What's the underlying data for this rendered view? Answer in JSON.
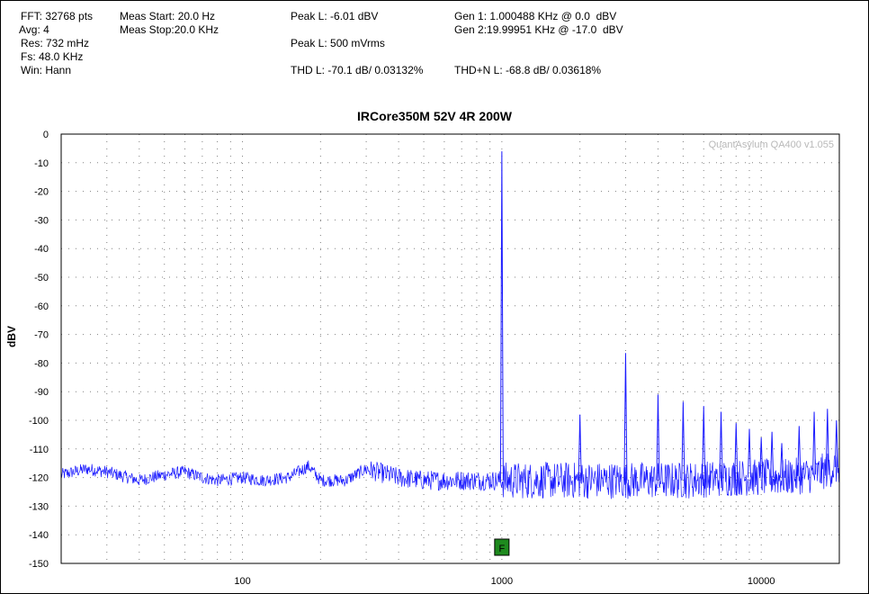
{
  "info": {
    "fft": "FFT: 32768 pts",
    "avg": "Avg: 4",
    "res": "Res: 732 mHz",
    "fs": "Fs: 48.0 KHz",
    "win": "Win: Hann",
    "meas_start": "Meas Start: 20.0 Hz",
    "meas_stop": "Meas Stop:20.0 KHz",
    "peak_l_dbv": "Peak L: -6.01 dBV",
    "peak_l_vrms": "Peak L: 500 mVrms",
    "thd_l": "THD L: -70.1 dB/ 0.03132%",
    "gen1": "Gen 1: 1.000488 KHz @ 0.0  dBV",
    "gen2": "Gen 2:19.99951 KHz @ -17.0  dBV",
    "thdn_l": "THD+N L: -68.8 dB/ 0.03618%"
  },
  "watermark": "QuantAsylum QA400 v1.055",
  "marker_label": "F",
  "colors": {
    "trace": "#1a1aff",
    "grid": "#808080",
    "marker_fill": "#1e8a1e"
  },
  "chart_data": {
    "type": "line",
    "title": "IRCore350M 52V 4R 200W",
    "xlabel": "",
    "ylabel": "dBV",
    "x_scale": "log",
    "xlim": [
      20,
      20000
    ],
    "ylim": [
      -150,
      0
    ],
    "x_tick_labels": [
      {
        "value": 100,
        "label": "100"
      },
      {
        "value": 1000,
        "label": "1000"
      },
      {
        "value": 10000,
        "label": "10000"
      }
    ],
    "y_ticks": [
      0,
      -10,
      -20,
      -30,
      -40,
      -50,
      -60,
      -70,
      -80,
      -90,
      -100,
      -110,
      -120,
      -130,
      -140,
      -150
    ],
    "grid": "dotted",
    "marker": {
      "x": 1000,
      "label": "F"
    },
    "noise_floor": [
      [
        20,
        -119
      ],
      [
        25,
        -117
      ],
      [
        30,
        -118
      ],
      [
        40,
        -121
      ],
      [
        50,
        -119
      ],
      [
        60,
        -118
      ],
      [
        70,
        -120
      ],
      [
        80,
        -121
      ],
      [
        100,
        -120
      ],
      [
        120,
        -121
      ],
      [
        150,
        -120
      ],
      [
        180,
        -116
      ],
      [
        200,
        -121
      ],
      [
        250,
        -121
      ],
      [
        300,
        -117
      ],
      [
        400,
        -120
      ],
      [
        500,
        -121
      ],
      [
        700,
        -121
      ],
      [
        1000,
        -121
      ],
      [
        1500,
        -121
      ],
      [
        2000,
        -121
      ],
      [
        3000,
        -121
      ],
      [
        5000,
        -121
      ],
      [
        8000,
        -120
      ],
      [
        12000,
        -120
      ],
      [
        16000,
        -119
      ],
      [
        20000,
        -116
      ]
    ],
    "peaks": [
      {
        "x": 1000,
        "y": -6.0
      },
      {
        "x": 2000,
        "y": -98
      },
      {
        "x": 3000,
        "y": -76.5
      },
      {
        "x": 4000,
        "y": -91
      },
      {
        "x": 5000,
        "y": -93.5
      },
      {
        "x": 6000,
        "y": -95
      },
      {
        "x": 7000,
        "y": -97
      },
      {
        "x": 8000,
        "y": -101
      },
      {
        "x": 9000,
        "y": -103
      },
      {
        "x": 10000,
        "y": -106
      },
      {
        "x": 11000,
        "y": -104
      },
      {
        "x": 12000,
        "y": -108
      },
      {
        "x": 14000,
        "y": -102
      },
      {
        "x": 16000,
        "y": -97
      },
      {
        "x": 18000,
        "y": -96
      },
      {
        "x": 19500,
        "y": -100
      }
    ]
  }
}
